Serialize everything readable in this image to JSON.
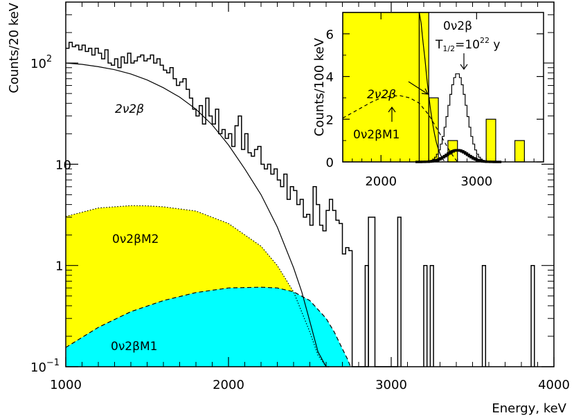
{
  "chart_data": [
    {
      "type": "step-histogram",
      "xlabel": "Energy, keV",
      "ylabel": "Counts/20 keV",
      "xlim": [
        1000,
        4000
      ],
      "ylim": [
        0.1,
        400
      ],
      "yscale": "log",
      "x_ticks": [
        1000,
        2000,
        3000,
        4000
      ],
      "y_ticks": [
        {
          "value": 0.1,
          "label": "10",
          "sup": "−1"
        },
        {
          "value": 1,
          "label": "1",
          "sup": ""
        },
        {
          "value": 10,
          "label": "10",
          "sup": ""
        },
        {
          "value": 100,
          "label": "10",
          "sup": "2"
        }
      ],
      "bin_width": 20,
      "histogram": {
        "x_start": 1000,
        "values": [
          140,
          160,
          145,
          150,
          135,
          150,
          130,
          140,
          120,
          140,
          125,
          110,
          135,
          100,
          95,
          110,
          90,
          115,
          100,
          125,
          100,
          105,
          115,
          120,
          105,
          110,
          120,
          100,
          110,
          95,
          85,
          80,
          90,
          70,
          60,
          65,
          70,
          55,
          45,
          35,
          30,
          38,
          25,
          45,
          30,
          25,
          35,
          20,
          22,
          18,
          20,
          15,
          24,
          30,
          14,
          20,
          13,
          12,
          14,
          15,
          10,
          9,
          10,
          8,
          9,
          7,
          6,
          8,
          4.5,
          6,
          5.5,
          4,
          4.5,
          3,
          3.2,
          2.5,
          6,
          4,
          2.5,
          2.2,
          3.5,
          4.5,
          3.5,
          2.8,
          2.6,
          1.3,
          1.5,
          1.4,
          0.1,
          0.1,
          0.1,
          0.1,
          0.1,
          3,
          3,
          0.1,
          0.1,
          0.1,
          0.1,
          0.1,
          0.1,
          0.1,
          3
        ]
      },
      "spikes": [
        {
          "x": 2840,
          "value": 1
        },
        {
          "x": 3200,
          "value": 1
        },
        {
          "x": 3240,
          "value": 1
        },
        {
          "x": 3560,
          "value": 1
        },
        {
          "x": 3860,
          "value": 1
        }
      ],
      "series": [
        {
          "name": "2ν2β",
          "style": "solid",
          "x": [
            1000,
            1100,
            1200,
            1300,
            1400,
            1500,
            1600,
            1700,
            1800,
            1900,
            2000,
            2100,
            2200,
            2300,
            2400,
            2450,
            2500,
            2550,
            2600,
            2620
          ],
          "y": [
            100,
            97,
            92,
            86,
            78,
            68,
            57,
            46,
            35,
            24.5,
            15.5,
            9,
            5,
            2.4,
            0.95,
            0.55,
            0.28,
            0.14,
            0.1,
            0.1
          ]
        },
        {
          "name": "0ν2βM2",
          "style": "dotted",
          "fill": "#ffff00",
          "x": [
            1000,
            1200,
            1400,
            1500,
            1600,
            1800,
            2000,
            2200,
            2300,
            2400,
            2500,
            2550,
            2600,
            2620
          ],
          "y": [
            3.05,
            3.7,
            3.9,
            3.88,
            3.8,
            3.45,
            2.6,
            1.55,
            1.0,
            0.55,
            0.22,
            0.13,
            0.1,
            0.1
          ]
        },
        {
          "name": "0ν2βM1",
          "style": "dashed",
          "fill": "#00ffff",
          "x": [
            1000,
            1200,
            1400,
            1600,
            1800,
            2000,
            2200,
            2300,
            2400,
            2500,
            2600,
            2650,
            2700,
            2730,
            2750
          ],
          "y": [
            0.155,
            0.245,
            0.35,
            0.45,
            0.54,
            0.6,
            0.61,
            0.6,
            0.55,
            0.45,
            0.3,
            0.22,
            0.15,
            0.12,
            0.1
          ]
        }
      ],
      "labels": {
        "two_nu": "2ν2β",
        "m2": "0ν2βM2",
        "m1": "0ν2βM1"
      }
    },
    {
      "type": "step-histogram",
      "inset": true,
      "ylabel": "Counts/100 keV",
      "xlim": [
        1600,
        3700
      ],
      "ylim": [
        0,
        7
      ],
      "x_ticks": [
        2000,
        3000
      ],
      "y_ticks": [
        0,
        2,
        4,
        6
      ],
      "filled_bars": [
        {
          "x0": 1600,
          "x1": 2400,
          "value": 7
        },
        {
          "x0": 2400,
          "x1": 2500,
          "value": 7
        },
        {
          "x0": 2500,
          "x1": 2600,
          "value": 3
        },
        {
          "x0": 2700,
          "x1": 2800,
          "value": 1
        },
        {
          "x0": 3100,
          "x1": 3200,
          "value": 2
        },
        {
          "x0": 3400,
          "x1": 3500,
          "value": 1
        }
      ],
      "series": [
        {
          "name": "2ν2β",
          "style": "solid",
          "x": [
            2400,
            2420,
            2440,
            2460,
            2480,
            2500,
            2520,
            2540,
            2560,
            2580,
            2600,
            2620,
            2640,
            2660
          ],
          "y": [
            7,
            6.5,
            5.6,
            4.8,
            3.9,
            3.1,
            2.4,
            1.8,
            1.3,
            0.9,
            0.6,
            0.35,
            0.18,
            0.05
          ]
        },
        {
          "name": "0ν2βM1",
          "style": "dashed",
          "x": [
            1600,
            1700,
            1800,
            1900,
            2000,
            2100,
            2200,
            2300,
            2400,
            2500,
            2600,
            2650,
            2700,
            2750,
            2800
          ],
          "y": [
            2.05,
            2.3,
            2.55,
            2.8,
            3.0,
            3.08,
            3.1,
            3.0,
            2.75,
            2.2,
            1.45,
            1.05,
            0.65,
            0.3,
            0
          ]
        },
        {
          "name": "0ν2β T1/2=10^22 y",
          "style": "step",
          "center": 2800,
          "sigma": 95,
          "peak": 4.15
        },
        {
          "name": "0ν2β small",
          "style": "bold-step",
          "center": 2800,
          "sigma": 110,
          "peak": 0.55
        }
      ],
      "labels": {
        "zero_nu": "0ν2β",
        "half_life_prefix": "T",
        "half_life_sub": "1/2",
        "half_life_eq": "=10",
        "half_life_exp": "22",
        "half_life_unit": " y",
        "two_nu": "2ν2β",
        "m1": "0ν2βM1"
      }
    }
  ]
}
